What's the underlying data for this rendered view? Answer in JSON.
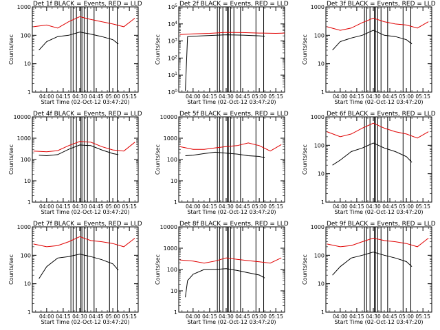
{
  "chart_data": {
    "type": "line",
    "x_unit": "time (hh:mm UT)",
    "x_ticks": [
      "04:00",
      "04:15",
      "04:30",
      "04:45",
      "05:00",
      "05:15"
    ],
    "xlim": [
      "03:47",
      "05:23"
    ],
    "ylabel": "Counts/sec",
    "xlabel": "Start Time (02-Oct-12 03:47:20)",
    "y_scale": "log",
    "legend_note": "BLACK = Events, RED = LLD",
    "colors": {
      "events": "#000000",
      "lld": "#e00000"
    },
    "vertical_markers": [
      "04:22",
      "04:24",
      "04:27",
      "04:31",
      "04:32",
      "04:34",
      "04:37",
      "04:43",
      "04:57",
      "05:04"
    ],
    "panels": [
      {
        "title": "Det 1f BLACK = Events, RED = LLD",
        "ylim": [
          1,
          1000
        ],
        "y_ticks": [
          "1",
          "10",
          "100",
          "1000"
        ],
        "series": [
          {
            "name": "RED = LLD",
            "x": [
              "03:48",
              "04:00",
              "04:10",
              "04:20",
              "04:30",
              "04:40",
              "04:50",
              "05:00",
              "05:10",
              "05:20"
            ],
            "y": [
              200,
              230,
              180,
              300,
              450,
              360,
              300,
              250,
              200,
              400
            ]
          },
          {
            "name": "BLACK = Events",
            "x": [
              "03:53",
              "04:00",
              "04:10",
              "04:20",
              "04:30",
              "04:40",
              "04:50",
              "05:00",
              "05:05"
            ],
            "y": [
              30,
              60,
              90,
              100,
              130,
              110,
              90,
              70,
              50
            ]
          }
        ]
      },
      {
        "title": "Det 2f BLACK = Events, RED = LLD",
        "ylim": [
          1,
          100000
        ],
        "y_ticks": [
          "10^0",
          "10^1",
          "10^2",
          "10^3",
          "10^4",
          "10^5"
        ],
        "series": [
          {
            "name": "RED = LLD",
            "x": [
              "03:48",
              "04:00",
              "04:15",
              "04:30",
              "04:45",
              "05:00",
              "05:15",
              "05:23"
            ],
            "y": [
              2400,
              2600,
              2800,
              3200,
              3100,
              2900,
              2800,
              2900
            ]
          },
          {
            "name": "BLACK = Events",
            "x": [
              "03:53",
              "03:55",
              "04:00",
              "04:15",
              "04:30",
              "04:45",
              "05:00",
              "05:05"
            ],
            "y": [
              1.2,
              1800,
              1900,
              2100,
              2300,
              2200,
              2000,
              1900
            ]
          }
        ]
      },
      {
        "title": "Det 3f BLACK = Events, RED = LLD",
        "ylim": [
          1,
          1000
        ],
        "y_ticks": [
          "1",
          "10",
          "100",
          "1000"
        ],
        "series": [
          {
            "name": "RED = LLD",
            "x": [
              "03:48",
              "04:00",
              "04:10",
              "04:20",
              "04:30",
              "04:40",
              "04:50",
              "05:00",
              "05:10",
              "05:20"
            ],
            "y": [
              200,
              150,
              180,
              280,
              400,
              300,
              250,
              230,
              180,
              300
            ]
          },
          {
            "name": "BLACK = Events",
            "x": [
              "03:53",
              "04:00",
              "04:10",
              "04:20",
              "04:30",
              "04:40",
              "04:50",
              "05:00",
              "05:05"
            ],
            "y": [
              30,
              60,
              80,
              100,
              150,
              100,
              90,
              70,
              50
            ]
          }
        ]
      },
      {
        "title": "Det 4f BLACK = Events, RED = LLD",
        "ylim": [
          1,
          10000
        ],
        "y_ticks": [
          "1",
          "10",
          "100",
          "1000",
          "10000"
        ],
        "series": [
          {
            "name": "RED = LLD",
            "x": [
              "03:48",
              "04:00",
              "04:10",
              "04:20",
              "04:30",
              "04:40",
              "04:50",
              "05:00",
              "05:10",
              "05:20"
            ],
            "y": [
              250,
              230,
              260,
              450,
              700,
              650,
              400,
              280,
              250,
              650
            ]
          },
          {
            "name": "BLACK = Events",
            "x": [
              "03:53",
              "04:00",
              "04:10",
              "04:20",
              "04:30",
              "04:40",
              "04:50",
              "05:00",
              "05:05"
            ],
            "y": [
              160,
              150,
              170,
              300,
              480,
              450,
              280,
              190,
              170
            ]
          }
        ]
      },
      {
        "title": "Det 5f BLACK = Events, RED = LLD",
        "ylim": [
          1,
          10000
        ],
        "y_ticks": [
          "1",
          "10",
          "100",
          "1000",
          "10000"
        ],
        "series": [
          {
            "name": "RED = LLD",
            "x": [
              "03:48",
              "04:00",
              "04:10",
              "04:20",
              "04:30",
              "04:40",
              "04:50",
              "05:00",
              "05:10",
              "05:20"
            ],
            "y": [
              400,
              300,
              300,
              350,
              400,
              450,
              600,
              450,
              250,
              500
            ]
          },
          {
            "name": "BLACK = Events",
            "x": [
              "03:53",
              "04:00",
              "04:10",
              "04:20",
              "04:30",
              "04:40",
              "04:50",
              "05:00",
              "05:05"
            ],
            "y": [
              150,
              160,
              190,
              220,
              200,
              180,
              150,
              140,
              120
            ]
          }
        ]
      },
      {
        "title": "Det 6f BLACK = Events, RED = LLD",
        "ylim": [
          1,
          1000
        ],
        "y_ticks": [
          "1",
          "10",
          "100",
          "1000"
        ],
        "series": [
          {
            "name": "RED = LLD",
            "x": [
              "03:48",
              "04:00",
              "04:10",
              "04:20",
              "04:30",
              "04:40",
              "04:50",
              "05:00",
              "05:10",
              "05:20"
            ],
            "y": [
              300,
              200,
              250,
              400,
              600,
              400,
              300,
              250,
              180,
              300
            ]
          },
          {
            "name": "BLACK = Events",
            "x": [
              "03:53",
              "04:00",
              "04:10",
              "04:20",
              "04:30",
              "04:40",
              "04:50",
              "05:00",
              "05:05"
            ],
            "y": [
              20,
              30,
              60,
              80,
              120,
              80,
              60,
              40,
              25
            ]
          }
        ]
      },
      {
        "title": "Det 7f BLACK = Events, RED = LLD",
        "ylim": [
          1,
          1000
        ],
        "y_ticks": [
          "1",
          "10",
          "100",
          "1000"
        ],
        "series": [
          {
            "name": "RED = LLD",
            "x": [
              "03:48",
              "04:00",
              "04:10",
              "04:20",
              "04:30",
              "04:40",
              "04:50",
              "05:00",
              "05:10",
              "05:20"
            ],
            "y": [
              250,
              200,
              220,
              300,
              450,
              330,
              300,
              260,
              200,
              400
            ]
          },
          {
            "name": "BLACK = Events",
            "x": [
              "03:53",
              "04:00",
              "04:10",
              "04:20",
              "04:30",
              "04:40",
              "04:50",
              "05:00",
              "05:05"
            ],
            "y": [
              15,
              40,
              80,
              90,
              110,
              90,
              70,
              50,
              30
            ]
          }
        ]
      },
      {
        "title": "Det 8f BLACK = Events, RED = LLD",
        "ylim": [
          1,
          10000
        ],
        "y_ticks": [
          "1",
          "10",
          "100",
          "1000",
          "10000"
        ],
        "series": [
          {
            "name": "RED = LLD",
            "x": [
              "03:48",
              "04:00",
              "04:10",
              "04:20",
              "04:30",
              "04:40",
              "04:50",
              "05:00",
              "05:10",
              "05:20"
            ],
            "y": [
              280,
              250,
              200,
              250,
              350,
              300,
              260,
              230,
              200,
              350
            ]
          },
          {
            "name": "BLACK = Events",
            "x": [
              "03:53",
              "03:55",
              "04:00",
              "04:10",
              "04:20",
              "04:30",
              "04:40",
              "04:50",
              "05:00",
              "05:05"
            ],
            "y": [
              5,
              30,
              60,
              100,
              100,
              110,
              90,
              70,
              55,
              40
            ]
          }
        ]
      },
      {
        "title": "Det 9f BLACK = Events, RED = LLD",
        "ylim": [
          1,
          1000
        ],
        "y_ticks": [
          "1",
          "10",
          "100",
          "1000"
        ],
        "series": [
          {
            "name": "RED = LLD",
            "x": [
              "03:48",
              "04:00",
              "04:10",
              "04:20",
              "04:30",
              "04:40",
              "04:50",
              "05:00",
              "05:10",
              "05:20"
            ],
            "y": [
              250,
              200,
              220,
              300,
              400,
              330,
              300,
              260,
              200,
              400
            ]
          },
          {
            "name": "BLACK = Events",
            "x": [
              "03:53",
              "04:00",
              "04:10",
              "04:20",
              "04:30",
              "04:40",
              "04:50",
              "05:00",
              "05:05"
            ],
            "y": [
              20,
              40,
              80,
              100,
              130,
              100,
              80,
              60,
              40
            ]
          }
        ]
      }
    ]
  }
}
